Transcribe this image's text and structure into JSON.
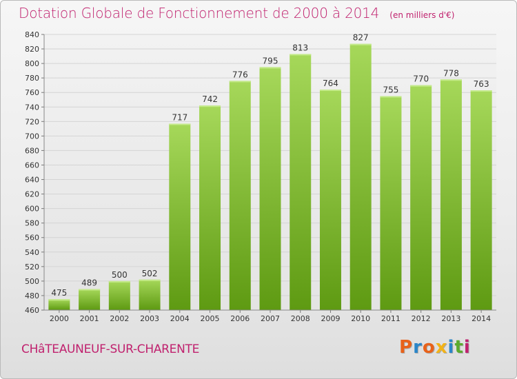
{
  "header": {
    "title": "Dotation Globale de Fonctionnement de 2000 à 2014",
    "subtitle": "(en milliers d'€)"
  },
  "footer": {
    "commune": "CHâTEAUNEUF-SUR-CHARENTE",
    "brand_text": "Proxiti",
    "brand_colors": [
      "#e8621a",
      "#2a86c9",
      "#e8621a",
      "#f2b318",
      "#2a86c9",
      "#5bab2e",
      "#c0216e"
    ]
  },
  "colors": {
    "title": "#c0216e",
    "bar_light": "#a6d85a",
    "bar_dark": "#5e9a12",
    "grid": "#d4d4d4"
  },
  "chart_data": {
    "type": "bar",
    "title": "Dotation Globale de Fonctionnement de 2000 à 2014",
    "subtitle": "(en milliers d'€)",
    "categories": [
      "2000",
      "2001",
      "2002",
      "2003",
      "2004",
      "2005",
      "2006",
      "2007",
      "2008",
      "2009",
      "2010",
      "2011",
      "2012",
      "2013",
      "2014"
    ],
    "values": [
      475,
      489,
      500,
      502,
      717,
      742,
      776,
      795,
      813,
      764,
      827,
      755,
      770,
      778,
      763
    ],
    "xlabel": "",
    "ylabel": "",
    "ylim": [
      460,
      840
    ],
    "yticks": [
      460,
      480,
      500,
      520,
      540,
      560,
      580,
      600,
      620,
      640,
      660,
      680,
      700,
      720,
      740,
      760,
      780,
      800,
      820,
      840
    ],
    "grid": true,
    "legend": "none",
    "data_labels": true
  }
}
